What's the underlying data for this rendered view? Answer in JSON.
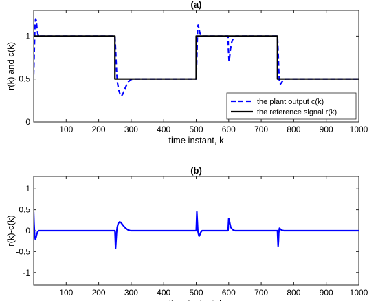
{
  "chart_data": [
    {
      "type": "line",
      "title": "(a)",
      "xlabel": "time instant, k",
      "ylabel": "r(k) and c(k)",
      "xlim": [
        0,
        1000
      ],
      "ylim": [
        0,
        1.3
      ],
      "xticks": [
        100,
        200,
        300,
        400,
        500,
        600,
        700,
        800,
        900,
        1000
      ],
      "yticks": [
        0,
        0.5,
        1
      ],
      "ytick_labels": [
        "0",
        "0.5",
        "1"
      ],
      "grid": false,
      "legend_position": "bottom-right",
      "series": [
        {
          "name": "the plant output c(k)",
          "color": "#0000ff",
          "style": "dashed",
          "x": [
            0,
            2,
            4,
            6,
            8,
            10,
            13,
            16,
            20,
            25,
            250,
            252,
            255,
            258,
            262,
            266,
            270,
            275,
            280,
            286,
            292,
            298,
            305,
            315,
            500,
            502,
            504,
            506,
            508,
            511,
            515,
            520,
            598,
            599,
            601,
            603,
            605,
            608,
            611,
            614,
            617,
            621,
            750,
            752,
            754,
            756,
            759,
            763,
            768,
            775,
            1000
          ],
          "y": [
            0.55,
            0.85,
            1.12,
            1.2,
            1.18,
            1.1,
            1.02,
            0.99,
            1.0,
            1.0,
            1.0,
            0.85,
            0.6,
            0.45,
            0.37,
            0.32,
            0.3,
            0.33,
            0.38,
            0.43,
            0.47,
            0.49,
            0.5,
            0.5,
            0.5,
            0.75,
            1.05,
            1.13,
            1.1,
            1.04,
            1.0,
            1.0,
            1.0,
            0.85,
            0.71,
            0.76,
            0.84,
            0.91,
            0.95,
            0.97,
            0.99,
            1.0,
            1.0,
            0.82,
            0.6,
            0.47,
            0.44,
            0.46,
            0.49,
            0.5,
            0.5
          ]
        },
        {
          "name": "the reference signal r(k)",
          "color": "#000000",
          "style": "solid",
          "x": [
            0,
            250,
            250,
            500,
            500,
            750,
            750,
            1000
          ],
          "y": [
            1,
            1,
            0.5,
            0.5,
            1,
            1,
            0.5,
            0.5
          ]
        }
      ]
    },
    {
      "type": "line",
      "title": "(b)",
      "xlabel": "time instant, k",
      "ylabel": "r(k)-c(k)",
      "xlim": [
        0,
        1000
      ],
      "ylim": [
        -1.3,
        1.3
      ],
      "xticks": [
        100,
        200,
        300,
        400,
        500,
        600,
        700,
        800,
        900,
        1000
      ],
      "yticks": [
        -1,
        -0.5,
        0,
        0.5,
        1
      ],
      "ytick_labels": [
        "-1",
        "-0.5",
        "0",
        "0.5",
        "1"
      ],
      "grid": false,
      "series": [
        {
          "color": "#0000ff",
          "style": "solid",
          "x": [
            0,
            1,
            3,
            5,
            7,
            9,
            12,
            15,
            20,
            30,
            250,
            251,
            252,
            253,
            255,
            257,
            260,
            264,
            268,
            272,
            277,
            283,
            290,
            298,
            305,
            320,
            500,
            501,
            502,
            503,
            505,
            507,
            509,
            511,
            514,
            518,
            525,
            598,
            599,
            600,
            602,
            604,
            606,
            609,
            612,
            615,
            620,
            750,
            751,
            752,
            753,
            754,
            756,
            759,
            763,
            770,
            1000
          ],
          "y": [
            0.45,
            0.2,
            -0.1,
            -0.2,
            -0.17,
            -0.1,
            -0.03,
            0,
            0,
            0,
            0,
            -0.2,
            -0.42,
            -0.3,
            -0.05,
            0.08,
            0.17,
            0.21,
            0.2,
            0.16,
            0.11,
            0.06,
            0.02,
            0,
            0,
            0,
            0,
            0.2,
            0.45,
            0.3,
            0,
            -0.08,
            -0.13,
            -0.1,
            -0.04,
            0,
            0,
            0,
            0.15,
            0.29,
            0.24,
            0.16,
            0.09,
            0.05,
            0.03,
            0.01,
            0,
            0,
            -0.2,
            -0.37,
            -0.25,
            -0.05,
            0.06,
            0.04,
            0.01,
            0,
            0
          ]
        }
      ]
    }
  ]
}
